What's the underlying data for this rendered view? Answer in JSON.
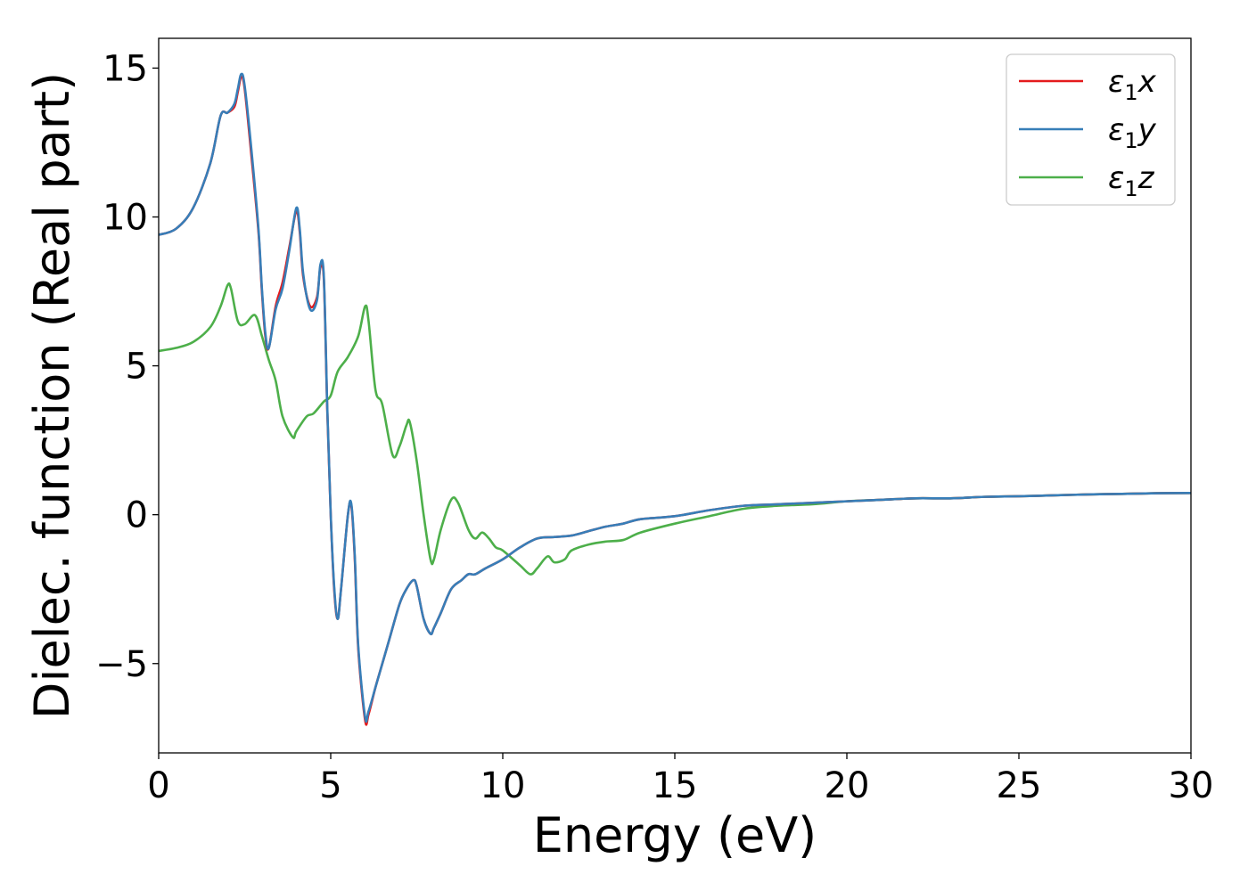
{
  "chart_data": {
    "type": "line",
    "title": "",
    "xlabel": "Energy (eV)",
    "ylabel": "Dielec. function (Real part)",
    "xlim": [
      0,
      30
    ],
    "ylim": [
      -8,
      16
    ],
    "xticks": [
      0,
      5,
      10,
      15,
      20,
      25,
      30
    ],
    "xtick_labels": [
      "0",
      "5",
      "10",
      "15",
      "20",
      "25",
      "30"
    ],
    "yticks": [
      -5,
      0,
      5,
      10,
      15
    ],
    "ytick_labels": [
      "−5",
      "0",
      "5",
      "10",
      "15"
    ],
    "grid": false,
    "legend_position": "top-right",
    "series": [
      {
        "name": "ε₁x",
        "name_symbol": "ε",
        "name_sub": "1",
        "name_var": "x",
        "color": "#e41a1c",
        "x": [
          0,
          0.5,
          1.0,
          1.5,
          1.8,
          2.0,
          2.2,
          2.3,
          2.4,
          2.5,
          2.7,
          2.9,
          3.0,
          3.1,
          3.2,
          3.4,
          3.6,
          3.8,
          4.0,
          4.1,
          4.2,
          4.4,
          4.6,
          4.7,
          4.8,
          4.9,
          5.0,
          5.1,
          5.2,
          5.3,
          5.5,
          5.6,
          5.7,
          5.8,
          6.0,
          6.1,
          6.3,
          6.5,
          6.7,
          7.0,
          7.2,
          7.4,
          7.5,
          7.7,
          7.9,
          8.0,
          8.2,
          8.5,
          8.8,
          9.0,
          9.2,
          9.5,
          10.0,
          10.5,
          11.0,
          11.5,
          12.0,
          12.5,
          13.0,
          13.5,
          14.0,
          15.0,
          16.0,
          17.0,
          18.0,
          19.0,
          20.0,
          21.0,
          22.0,
          23.0,
          24.0,
          25.0,
          26.0,
          27.0,
          28.0,
          29.0,
          30.0
        ],
        "y": [
          9.4,
          9.6,
          10.3,
          11.8,
          13.4,
          13.5,
          13.7,
          14.2,
          14.7,
          14.3,
          12.0,
          9.5,
          7.5,
          6.0,
          5.6,
          7.0,
          7.8,
          9.0,
          10.2,
          9.5,
          8.0,
          7.0,
          7.3,
          8.3,
          7.9,
          3.5,
          0.0,
          -2.5,
          -3.5,
          -2.5,
          0.0,
          0.3,
          -1.5,
          -4.5,
          -6.9,
          -6.7,
          -5.8,
          -5.0,
          -4.2,
          -3.0,
          -2.5,
          -2.2,
          -2.4,
          -3.5,
          -4.0,
          -3.8,
          -3.3,
          -2.5,
          -2.2,
          -2.0,
          -2.0,
          -1.8,
          -1.5,
          -1.1,
          -0.8,
          -0.75,
          -0.7,
          -0.55,
          -0.4,
          -0.3,
          -0.15,
          -0.05,
          0.15,
          0.3,
          0.35,
          0.4,
          0.45,
          0.5,
          0.55,
          0.55,
          0.6,
          0.62,
          0.65,
          0.68,
          0.7,
          0.72,
          0.73
        ]
      },
      {
        "name": "ε₁y",
        "name_symbol": "ε",
        "name_sub": "1",
        "name_var": "y",
        "color": "#377eb8",
        "x": [
          0,
          0.5,
          1.0,
          1.5,
          1.8,
          2.0,
          2.2,
          2.3,
          2.4,
          2.5,
          2.7,
          2.9,
          3.0,
          3.1,
          3.2,
          3.4,
          3.6,
          3.8,
          4.0,
          4.1,
          4.2,
          4.4,
          4.6,
          4.7,
          4.8,
          4.9,
          5.0,
          5.1,
          5.2,
          5.3,
          5.5,
          5.6,
          5.7,
          5.8,
          6.0,
          6.1,
          6.3,
          6.5,
          6.7,
          7.0,
          7.2,
          7.4,
          7.5,
          7.7,
          7.9,
          8.0,
          8.2,
          8.5,
          8.8,
          9.0,
          9.2,
          9.5,
          10.0,
          10.5,
          11.0,
          11.5,
          12.0,
          12.5,
          13.0,
          13.5,
          14.0,
          15.0,
          16.0,
          17.0,
          18.0,
          19.0,
          20.0,
          21.0,
          22.0,
          23.0,
          24.0,
          25.0,
          26.0,
          27.0,
          28.0,
          29.0,
          30.0
        ],
        "y": [
          9.4,
          9.6,
          10.3,
          11.8,
          13.4,
          13.5,
          13.8,
          14.3,
          14.8,
          14.4,
          12.2,
          9.6,
          7.6,
          6.1,
          5.6,
          6.9,
          7.6,
          8.9,
          10.3,
          9.6,
          8.1,
          6.9,
          7.2,
          8.4,
          8.0,
          3.6,
          0.0,
          -2.4,
          -3.5,
          -2.5,
          0.0,
          0.35,
          -1.4,
          -4.4,
          -6.8,
          -6.6,
          -5.8,
          -5.0,
          -4.2,
          -3.0,
          -2.5,
          -2.2,
          -2.4,
          -3.5,
          -4.0,
          -3.8,
          -3.3,
          -2.5,
          -2.2,
          -2.0,
          -2.0,
          -1.8,
          -1.5,
          -1.1,
          -0.8,
          -0.75,
          -0.7,
          -0.55,
          -0.4,
          -0.3,
          -0.15,
          -0.05,
          0.15,
          0.3,
          0.35,
          0.4,
          0.45,
          0.5,
          0.55,
          0.55,
          0.6,
          0.62,
          0.65,
          0.68,
          0.7,
          0.72,
          0.73
        ]
      },
      {
        "name": "ε₁z",
        "name_symbol": "ε",
        "name_sub": "1",
        "name_var": "z",
        "color": "#4daf4a",
        "x": [
          0,
          0.5,
          1.0,
          1.5,
          1.8,
          2.0,
          2.1,
          2.3,
          2.5,
          2.8,
          3.0,
          3.2,
          3.4,
          3.6,
          3.9,
          4.0,
          4.3,
          4.5,
          4.8,
          5.0,
          5.2,
          5.5,
          5.8,
          6.0,
          6.1,
          6.3,
          6.5,
          6.8,
          7.0,
          7.2,
          7.3,
          7.5,
          7.7,
          7.9,
          8.0,
          8.2,
          8.5,
          8.7,
          9.0,
          9.2,
          9.4,
          9.6,
          9.8,
          10.0,
          10.5,
          10.8,
          11.0,
          11.3,
          11.5,
          11.8,
          12.0,
          12.5,
          13.0,
          13.5,
          14.0,
          15.0,
          16.0,
          17.0,
          18.0,
          19.0,
          20.0,
          21.0,
          22.0,
          23.0,
          24.0,
          25.0,
          26.0,
          27.0,
          28.0,
          29.0,
          30.0
        ],
        "y": [
          5.5,
          5.6,
          5.8,
          6.3,
          7.0,
          7.7,
          7.6,
          6.5,
          6.4,
          6.7,
          6.0,
          5.2,
          4.5,
          3.3,
          2.6,
          2.8,
          3.3,
          3.4,
          3.8,
          4.0,
          4.8,
          5.3,
          6.0,
          7.0,
          6.5,
          4.2,
          3.7,
          2.0,
          2.3,
          3.0,
          3.1,
          1.8,
          0.0,
          -1.5,
          -1.5,
          -0.5,
          0.5,
          0.4,
          -0.5,
          -0.8,
          -0.6,
          -0.8,
          -1.1,
          -1.2,
          -1.7,
          -2.0,
          -1.8,
          -1.4,
          -1.6,
          -1.5,
          -1.2,
          -1.0,
          -0.9,
          -0.85,
          -0.6,
          -0.3,
          -0.05,
          0.2,
          0.3,
          0.35,
          0.45,
          0.5,
          0.55,
          0.55,
          0.6,
          0.62,
          0.65,
          0.68,
          0.7,
          0.72,
          0.73
        ]
      }
    ]
  }
}
